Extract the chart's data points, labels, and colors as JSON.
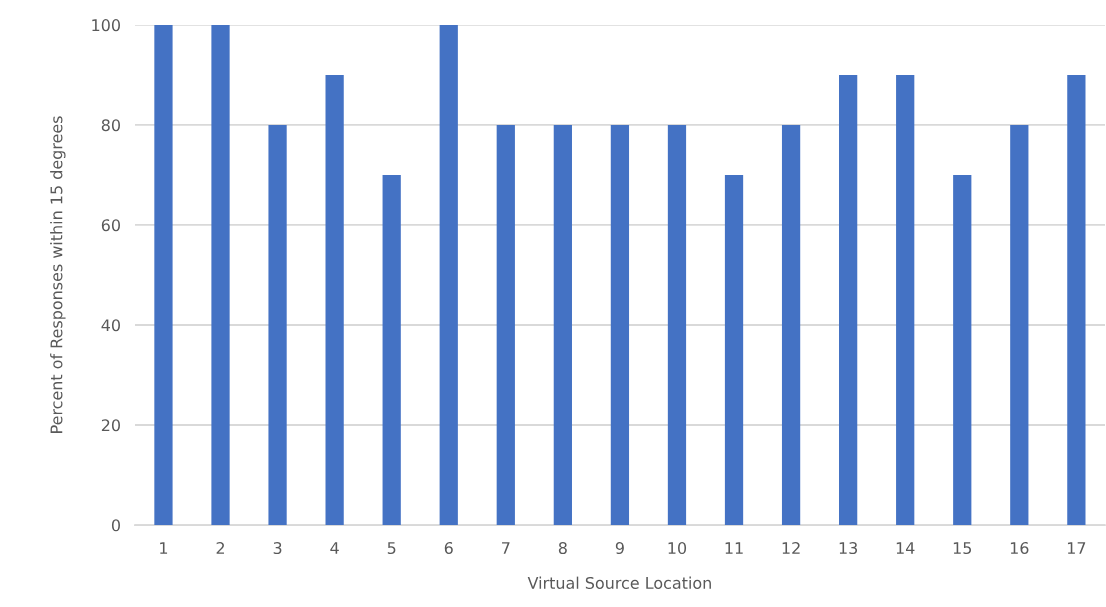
{
  "chart_data": {
    "type": "bar",
    "xlabel": "Virtual Source Location",
    "ylabel": "Percent of Responses within 15 degrees",
    "categories": [
      "1",
      "2",
      "3",
      "4",
      "5",
      "6",
      "7",
      "8",
      "9",
      "10",
      "11",
      "12",
      "13",
      "14",
      "15",
      "16",
      "17"
    ],
    "values": [
      100,
      100,
      80,
      90,
      70,
      100,
      80,
      80,
      80,
      80,
      70,
      80,
      90,
      90,
      70,
      80,
      90
    ],
    "color": "#4472c4",
    "ylim": [
      0,
      100
    ],
    "yticks": [
      0,
      20,
      40,
      60,
      80,
      100
    ],
    "grid": "y",
    "legend": false
  }
}
